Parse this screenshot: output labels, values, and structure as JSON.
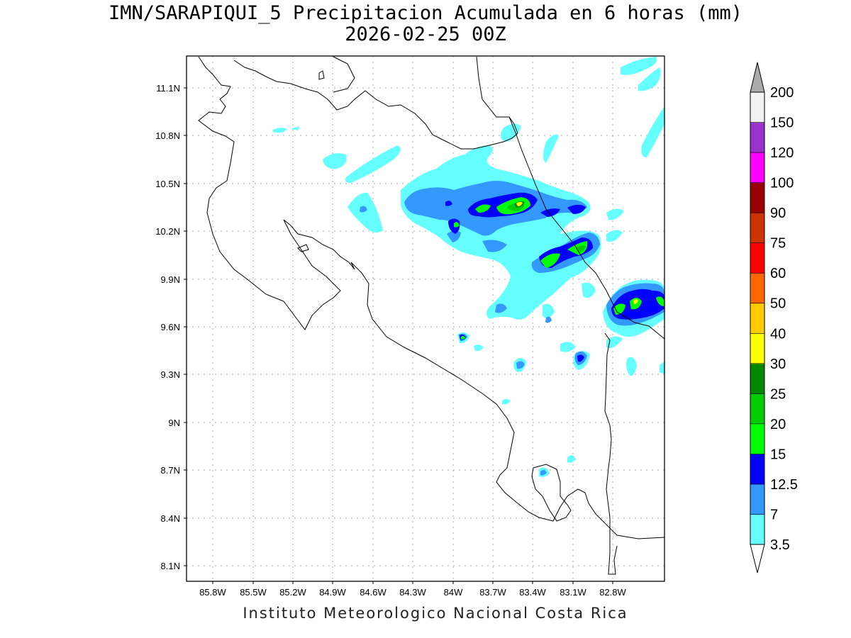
{
  "title_line1": "IMN/SARAPIQUI_5 Precipitacion Acumulada en 6 horas (mm)",
  "title_line2": "2026-02-25 00Z",
  "footer": "Instituto Meteorologico Nacional Costa Rica",
  "lat_labels": [
    "11.1N",
    "10.8N",
    "10.5N",
    "10.2N",
    "9.9N",
    "9.6N",
    "9.3N",
    "9N",
    "8.7N",
    "8.4N",
    "8.1N"
  ],
  "lon_labels": [
    "85.8W",
    "85.5W",
    "85.2W",
    "84.9W",
    "84.6W",
    "84.3W",
    "84W",
    "83.7W",
    "83.4W",
    "83.1W",
    "82.8W"
  ],
  "colorbar": {
    "labels": [
      "3.5",
      "7",
      "12.5",
      "15",
      "20",
      "25",
      "30",
      "40",
      "50",
      "60",
      "75",
      "90",
      "100",
      "120",
      "150",
      "200"
    ],
    "colors": [
      "#ffffff",
      "#66ffff",
      "#3399ff",
      "#0000ff",
      "#00ff00",
      "#00cc00",
      "#008800",
      "#ffff00",
      "#ffcc00",
      "#ff6600",
      "#ff0000",
      "#cc3300",
      "#990000",
      "#ff00ff",
      "#9933cc",
      "#f2f2f2",
      "#aaaaaa"
    ]
  }
}
